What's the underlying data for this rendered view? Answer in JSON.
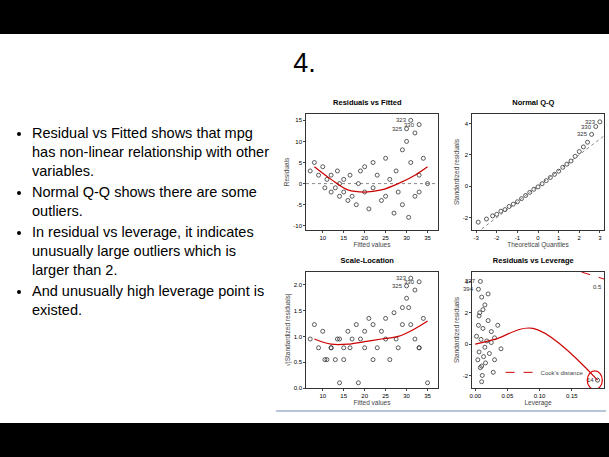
{
  "title": "4.",
  "bullets": [
    "Residual vs Fitted shows that mpg has non-linear relationship with other variables.",
    "Normal Q-Q shows there are some outliers.",
    "In residual vs leverage, it indicates unusually large outliers which is larger than 2.",
    "And unusually high leverage point is existed."
  ],
  "chart_data": [
    {
      "type": "scatter",
      "title": "Residuals vs Fitted",
      "x_label": "Fitted values",
      "y_label": "Residuals",
      "xlim": [
        6,
        37.5
      ],
      "ylim": [
        -11,
        16.5
      ],
      "xticks": [
        10,
        15,
        20,
        25,
        30,
        35
      ],
      "yticks": [
        -10,
        -5,
        0,
        5,
        10,
        15
      ],
      "marker": "open circle",
      "color": "#333333",
      "x": [
        7,
        8,
        9,
        10,
        10.5,
        11,
        12,
        12,
        13,
        13.5,
        14,
        14,
        15,
        15,
        16,
        16.5,
        17,
        18,
        18.5,
        19,
        20,
        20,
        21,
        22,
        22,
        23,
        24,
        25,
        25,
        26,
        27,
        27.5,
        28,
        29,
        29,
        30,
        30.5,
        31,
        32,
        32,
        33,
        33,
        34,
        35,
        30,
        31,
        33
      ],
      "y": [
        3,
        5,
        2,
        4,
        -1,
        1,
        2,
        -2,
        -1,
        3,
        -3,
        0,
        -2,
        1,
        -4,
        2,
        -3,
        -5,
        0,
        3,
        -2,
        4,
        -6,
        -1,
        5,
        2,
        -4,
        -3,
        6,
        1,
        -7,
        3,
        -2,
        8,
        -5,
        10,
        -8,
        5,
        -3,
        12,
        14,
        -2,
        6,
        0,
        13,
        15,
        2
      ],
      "smooth": {
        "x": [
          8,
          12,
          16,
          20,
          24,
          28,
          32,
          35
        ],
        "y": [
          4,
          1,
          -1.5,
          -2,
          -1.5,
          0,
          2,
          4
        ],
        "color": "#cc0000"
      },
      "reference_line": {
        "x": [
          6,
          37.5
        ],
        "y": [
          0,
          0
        ]
      },
      "point_labels": [
        {
          "x": 31,
          "y": 15,
          "text": "323"
        },
        {
          "x": 33,
          "y": 14,
          "text": "330"
        },
        {
          "x": 30,
          "y": 13,
          "text": "325"
        }
      ]
    },
    {
      "type": "scatter",
      "title": "Normal Q-Q",
      "x_label": "Theoretical Quantiles",
      "y_label": "Standardized residuals",
      "xlim": [
        -3.2,
        3.2
      ],
      "ylim": [
        -2.8,
        4.6
      ],
      "xticks": [
        -3,
        -2,
        -1,
        0,
        1,
        2,
        3
      ],
      "yticks": [
        -2,
        0,
        2,
        4
      ],
      "marker": "open circle",
      "color": "#333333",
      "x": [
        -2.9,
        -2.5,
        -2.2,
        -2,
        -1.8,
        -1.6,
        -1.4,
        -1.2,
        -1,
        -0.8,
        -0.6,
        -0.4,
        -0.2,
        0,
        0.2,
        0.4,
        0.6,
        0.8,
        1,
        1.2,
        1.4,
        1.6,
        1.8,
        2,
        2.2,
        2.4,
        2.6,
        2.8,
        3
      ],
      "y": [
        -2.3,
        -2.1,
        -1.9,
        -1.8,
        -1.6,
        -1.5,
        -1.3,
        -1.15,
        -1,
        -0.8,
        -0.6,
        -0.4,
        -0.2,
        -0.05,
        0.15,
        0.35,
        0.55,
        0.75,
        0.95,
        1.2,
        1.4,
        1.6,
        1.9,
        2.2,
        2.5,
        2.8,
        3.3,
        3.8,
        4.1
      ],
      "reference_line": {
        "x": [
          -3.2,
          3.2
        ],
        "y": [
          -3.2,
          3.2
        ]
      },
      "point_labels": [
        {
          "x": 3,
          "y": 4.1,
          "text": "323"
        },
        {
          "x": 2.8,
          "y": 3.8,
          "text": "330"
        },
        {
          "x": 2.6,
          "y": 3.3,
          "text": "325"
        }
      ]
    },
    {
      "type": "scatter",
      "title": "Scale-Location",
      "x_label": "Fitted values",
      "y_label": "√|Standardized residuals|",
      "xlim": [
        6,
        37.5
      ],
      "ylim": [
        0,
        2.25
      ],
      "xticks": [
        10,
        15,
        20,
        25,
        30,
        35
      ],
      "yticks": [
        {
          "value": 0,
          "label": "0.0"
        },
        0.5,
        {
          "value": 1,
          "label": "1.0"
        },
        1.5,
        {
          "value": 2,
          "label": "2.0"
        }
      ],
      "marker": "open circle",
      "color": "#333333",
      "x": [
        7,
        8,
        9,
        10,
        10.5,
        11,
        12,
        12,
        13,
        13.5,
        14,
        14,
        15,
        15,
        16,
        16.5,
        17,
        18,
        18.5,
        19,
        20,
        20,
        21,
        22,
        22,
        23,
        24,
        25,
        25,
        26,
        27,
        27.5,
        28,
        29,
        29,
        30,
        30.5,
        31,
        32,
        32,
        33,
        33,
        34,
        35,
        30,
        31,
        33
      ],
      "y": [
        0.95,
        1.23,
        0.78,
        1.1,
        0.55,
        0.55,
        0.78,
        0.78,
        0.55,
        0.95,
        0.95,
        0.1,
        0.78,
        0.55,
        1.1,
        0.78,
        0.95,
        1.23,
        0.1,
        0.95,
        0.78,
        1.1,
        1.35,
        0.55,
        1.23,
        0.78,
        1.1,
        0.95,
        1.35,
        0.55,
        1.46,
        0.95,
        0.78,
        1.56,
        1.23,
        1.74,
        1.56,
        1.23,
        0.95,
        1.9,
        2.06,
        0.78,
        1.35,
        0.1,
        1.98,
        2.13,
        0.78
      ],
      "smooth": {
        "x": [
          8,
          12,
          16,
          20,
          24,
          28,
          32,
          35
        ],
        "y": [
          0.95,
          0.85,
          0.85,
          0.9,
          0.95,
          1.0,
          1.15,
          1.3
        ],
        "color": "#cc0000"
      },
      "point_labels": [
        {
          "x": 31,
          "y": 2.13,
          "text": "323"
        },
        {
          "x": 33,
          "y": 2.06,
          "text": "330"
        },
        {
          "x": 30,
          "y": 1.98,
          "text": "325"
        }
      ]
    },
    {
      "type": "scatter",
      "title": "Residuals vs Leverage",
      "x_label": "Leverage",
      "y_label": "Standardized residuals",
      "xlim": [
        -0.005,
        0.2
      ],
      "ylim": [
        -2.8,
        4.6
      ],
      "xticks": [
        {
          "value": 0,
          "label": "0.00"
        },
        0.05,
        {
          "value": 0.1,
          "label": "0.10"
        },
        0.15
      ],
      "yticks": [
        -2,
        0,
        2,
        4
      ],
      "marker": "open circle",
      "color": "#333333",
      "legend": "bottom center",
      "x": [
        0.002,
        0.004,
        0.005,
        0.006,
        0.007,
        0.008,
        0.009,
        0.01,
        0.011,
        0.012,
        0.013,
        0.015,
        0.016,
        0.018,
        0.02,
        0.022,
        0.025,
        0.028,
        0.03,
        0.035,
        0.04,
        0.005,
        0.008,
        0.01,
        0.012,
        0.015,
        0.02,
        0.01,
        0.006,
        0.19,
        0.025,
        0.03
      ],
      "y": [
        0.5,
        -1,
        1.2,
        -0.5,
        2,
        -1.5,
        0.3,
        3,
        -2,
        1,
        -0.8,
        2.5,
        -1.2,
        0.2,
        1.5,
        -0.6,
        0.8,
        -1.8,
        0.4,
        1.2,
        -0.3,
        3.5,
        4,
        -2.4,
        2.2,
        -0.2,
        3.2,
        -1.4,
        1.8,
        -2.3,
        0.1,
        -1
      ],
      "smooth": {
        "x": [
          0,
          0.03,
          0.09,
          0.19
        ],
        "y": [
          0,
          0.3,
          1,
          -2.3
        ],
        "color": "#cc0000"
      },
      "cooks_distance": {
        "name": "Cook's distance",
        "label": "0.5",
        "color": "#cc0000",
        "x": [
          0.165,
          0.2
        ],
        "y": [
          4.6,
          4.15
        ]
      },
      "point_labels": [
        {
          "x": 0.008,
          "y": 4,
          "text": "327"
        },
        {
          "x": 0.005,
          "y": 3.5,
          "text": "394"
        },
        {
          "x": 0.19,
          "y": -2.3,
          "text": "14"
        }
      ]
    }
  ]
}
